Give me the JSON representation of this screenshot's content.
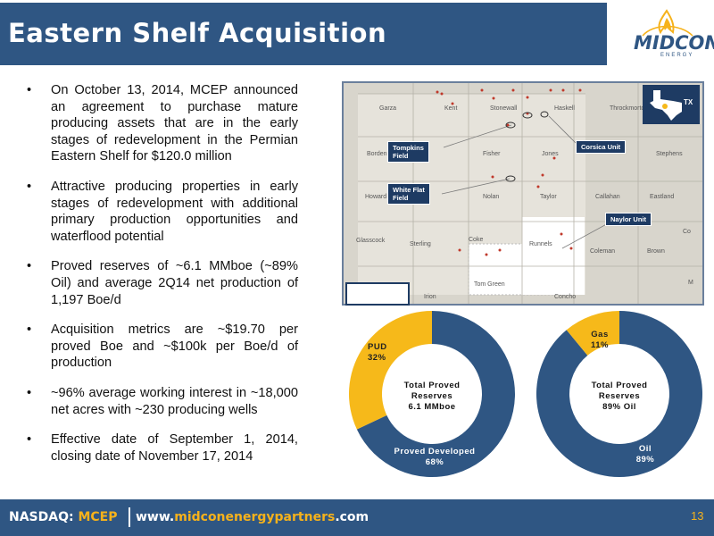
{
  "title": "Eastern Shelf Acquisition",
  "logo": {
    "name": "MIDCON",
    "sub": "ENERGY"
  },
  "bullets": [
    "On October 13, 2014, MCEP announced an agreement to purchase mature producing assets that are in the early stages of redevelopment in the Permian Eastern Shelf for $120.0 million",
    "Attractive producing properties in early stages of redevelopment with additional primary production opportunities and waterflood potential",
    "Proved reserves of ~6.1 MMboe (~89% Oil) and average 2Q14 net production of 1,197 Boe/d",
    "Acquisition metrics are ~$19.70 per proved Boe and ~$100k per Boe/d of production",
    "~96% average working interest in ~18,000 net acres with ~230 producing wells",
    "Effective date of September 1, 2014, closing date of November 17, 2014"
  ],
  "map": {
    "state_badge": "TX",
    "counties": [
      "Garza",
      "Kent",
      "Stonewall",
      "Haskell",
      "Throckmorton",
      "Borden",
      "Fisher",
      "Jones",
      "Stephens",
      "Howard",
      "Nolan",
      "Taylor",
      "Callahan",
      "Eastland",
      "Glasscock",
      "Sterling",
      "Coke",
      "Runnels",
      "Coleman",
      "Brown",
      "Tom Green",
      "Irion",
      "Concho",
      "Co",
      "M"
    ],
    "labels": {
      "tompkins": [
        "Tompkins",
        "Field"
      ],
      "whiteflat": [
        "White Flat",
        "Field"
      ],
      "corsica": "Corsica Unit",
      "naylor": "Naylor Unit"
    }
  },
  "charts": [
    {
      "center": [
        "Total Proved",
        "Reserves",
        "6.1 MMboe"
      ],
      "slices": [
        {
          "label": "Proved Developed",
          "pct_text": "68%",
          "value": 68,
          "color": "#2f5683"
        },
        {
          "label": "PUD",
          "pct_text": "32%",
          "value": 32,
          "color": "#f6b91a"
        }
      ]
    },
    {
      "center": [
        "Total Proved",
        "Reserves",
        "89% Oil"
      ],
      "slices": [
        {
          "label": "Oil",
          "pct_text": "89%",
          "value": 89,
          "color": "#2f5683"
        },
        {
          "label": "Gas",
          "pct_text": "11%",
          "value": 11,
          "color": "#f6b91a"
        }
      ]
    }
  ],
  "footer": {
    "nasdaq": "NASDAQ: ",
    "ticker": "MCEP",
    "url_pre": "www.",
    "url_mid": "midconenergypartners",
    "url_post": ".com",
    "page": "13"
  },
  "colors": {
    "brand_blue": "#2f5683",
    "brand_gold": "#f6b91a"
  }
}
